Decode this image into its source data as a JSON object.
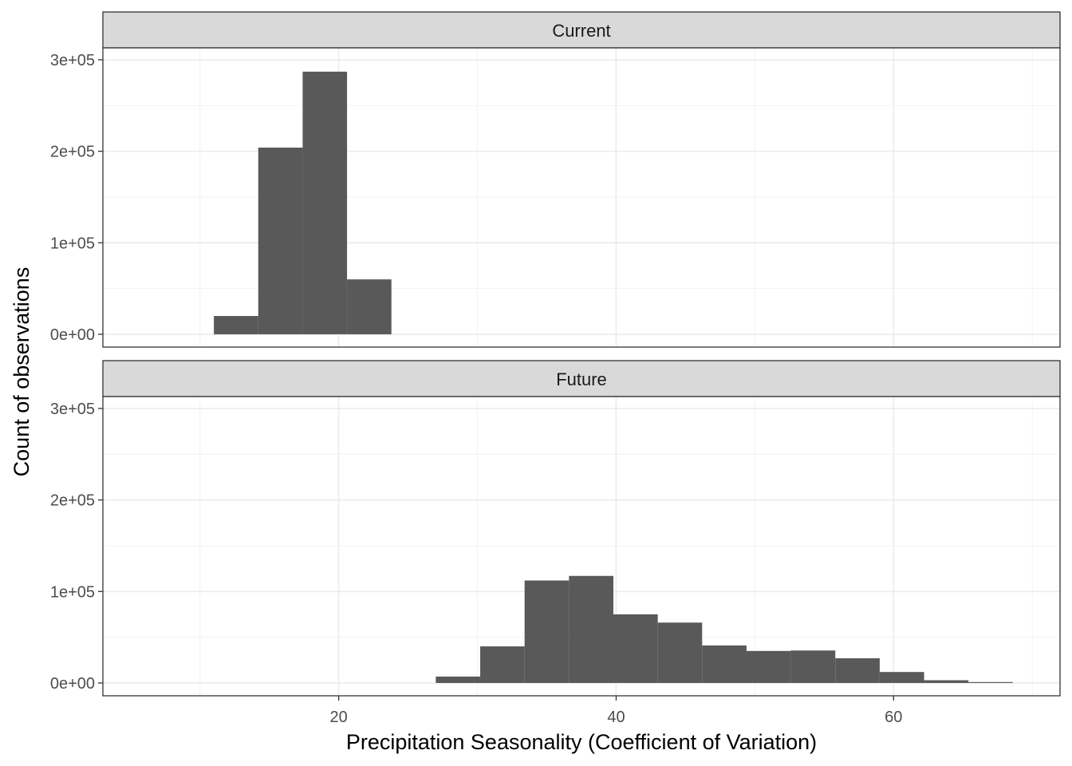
{
  "chart_data": {
    "type": "bar",
    "subtype": "faceted-histogram",
    "xlabel": "Precipitation Seasonality (Coefficient of Variation)",
    "ylabel": "Count of observations",
    "xlim": [
      3,
      72
    ],
    "ylim": [
      -14000,
      313000
    ],
    "x_ticks": [
      20,
      40,
      60
    ],
    "x_tick_labels": [
      "20",
      "40",
      "60"
    ],
    "y_ticks": [
      0,
      100000,
      200000,
      300000
    ],
    "y_tick_labels": [
      "0e+00",
      "1e+05",
      "2e+05",
      "3e+05"
    ],
    "bar_color": "#595959",
    "grid": true,
    "panels": [
      {
        "name": "Current",
        "bins": [
          {
            "x0": 11.0,
            "x1": 14.2,
            "count": 20000
          },
          {
            "x0": 14.2,
            "x1": 17.4,
            "count": 204000
          },
          {
            "x0": 17.4,
            "x1": 20.6,
            "count": 287000
          },
          {
            "x0": 20.6,
            "x1": 23.8,
            "count": 60000
          }
        ]
      },
      {
        "name": "Future",
        "bins": [
          {
            "x0": 27.0,
            "x1": 30.2,
            "count": 7000
          },
          {
            "x0": 30.2,
            "x1": 33.4,
            "count": 40000
          },
          {
            "x0": 33.4,
            "x1": 36.6,
            "count": 112000
          },
          {
            "x0": 36.6,
            "x1": 39.8,
            "count": 117000
          },
          {
            "x0": 39.8,
            "x1": 43.0,
            "count": 75000
          },
          {
            "x0": 43.0,
            "x1": 46.2,
            "count": 66000
          },
          {
            "x0": 46.2,
            "x1": 49.4,
            "count": 41000
          },
          {
            "x0": 49.4,
            "x1": 52.6,
            "count": 35000
          },
          {
            "x0": 52.6,
            "x1": 55.8,
            "count": 35500
          },
          {
            "x0": 55.8,
            "x1": 59.0,
            "count": 27000
          },
          {
            "x0": 59.0,
            "x1": 62.2,
            "count": 12000
          },
          {
            "x0": 62.2,
            "x1": 65.4,
            "count": 3000
          },
          {
            "x0": 65.4,
            "x1": 68.6,
            "count": 1000
          }
        ]
      }
    ]
  }
}
